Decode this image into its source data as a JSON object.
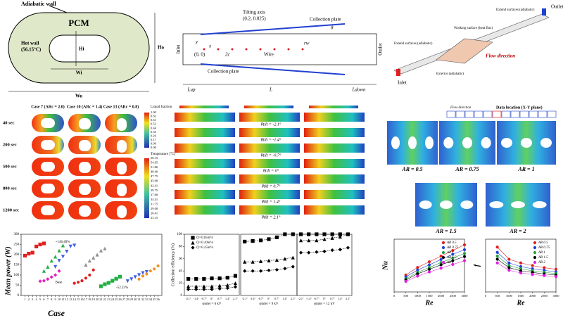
{
  "panels": {
    "stadium": {
      "wall": "Adiabatic wall",
      "pcm": "PCM",
      "hot": "Hot wall",
      "hot_temp": "(56.15°C)",
      "hi": "Hi",
      "wi": "Wi",
      "ho": "Ho",
      "wo": "Wo"
    },
    "channel": {
      "axis": "Tilting axis",
      "axis_pt": "(0.2, 0.025)",
      "plate_top": "Collection plate",
      "plate_bottom": "Collection plate",
      "inlet": "Inlet",
      "outlet": "Outlet",
      "origin": "(0, 0)",
      "gap": "2c",
      "wire": "Wire",
      "rw": "rw",
      "theta": "θ",
      "y": "y",
      "x": "x",
      "lup": "Lup",
      "l": "L",
      "ldown": "Ldown"
    },
    "duct": {
      "outlet": "Outlet",
      "inlet": "Inlet",
      "ext_left": "Extend surfaces (adiabatic)",
      "ext_right": "Extend surfaces (adiabatic)",
      "working": "Working surface (heat flux)",
      "flow": "Flow direction",
      "exterior": "Exterior (adiabatic)"
    },
    "cases": {
      "columns": [
        "Case 7 (ARc = 2.0)",
        "Case 10 (ARc = 1.4)",
        "Case 13 (ARc = 0.8)"
      ],
      "times": [
        "40 sec",
        "200 sec",
        "500 sec",
        "800 sec",
        "1200 sec"
      ],
      "liquid_title": "Liquid fraction",
      "liquid_ticks": [
        "1.00",
        "0.83",
        "0.61",
        "0.52",
        "0.44",
        "0.35",
        "0.26",
        "0.17",
        "0.09",
        "0.00"
      ],
      "temp_title": "Temperature [°C]",
      "temp_ticks": [
        "56.15",
        "54.95",
        "51.86",
        "48.40",
        "47.75",
        "45.08",
        "42.41",
        "39.75",
        "37.08",
        "34.41",
        "31.75",
        "29.08",
        "26.41",
        "23.15"
      ]
    },
    "tilt": {
      "labels": [
        "θtilt = -2.1°",
        "θtilt = -1.4°",
        "θtilt = -0.7°",
        "θtilt = 0°",
        "θtilt = 0.7°",
        "θtilt = 1.4°",
        "θtilt = 2.1°"
      ]
    },
    "ar": {
      "flow": "Flow direction",
      "data_loc": "Data location (X-Y plane)",
      "labels": [
        "AR = 0.5",
        "AR = 0.75",
        "AR = 1",
        "AR = 1.5",
        "AR = 2"
      ]
    }
  },
  "chart_data": [
    {
      "type": "scatter",
      "ylabel": "Mean power (W)",
      "xlabel": "Case",
      "annotations": [
        "+146.40%",
        "Base",
        "-52.23%"
      ],
      "xlim": [
        0,
        37
      ],
      "ylim": [
        0,
        300
      ],
      "yticks": [
        0,
        50,
        100,
        150,
        200,
        250,
        300
      ],
      "xticks": [
        1,
        2,
        3,
        4,
        5,
        6,
        7,
        8,
        9,
        10,
        11,
        12,
        13,
        14,
        15,
        16,
        17,
        18,
        19,
        20,
        21,
        22,
        23,
        24,
        25,
        26,
        27,
        28,
        29,
        30,
        31,
        32,
        33,
        34,
        35,
        36
      ],
      "series": [
        {
          "color": "#e02020",
          "marker": "square",
          "x": [
            1,
            2,
            3,
            4,
            5,
            6
          ],
          "values": [
            195,
            205,
            210,
            240,
            250,
            255
          ]
        },
        {
          "color": "#20b040",
          "marker": "triangle",
          "x": [
            6,
            7,
            8,
            9,
            10,
            11
          ],
          "values": [
            120,
            140,
            170,
            190,
            220,
            245
          ]
        },
        {
          "color": "#e020c0",
          "marker": "diamond",
          "x": [
            5,
            6,
            7,
            8,
            9,
            10
          ],
          "values": [
            70,
            72,
            80,
            90,
            100,
            120
          ]
        },
        {
          "color": "#4060e0",
          "marker": "triangle-down",
          "x": [
            9,
            10,
            11,
            12,
            13,
            14
          ],
          "values": [
            140,
            170,
            190,
            215,
            240,
            245
          ]
        },
        {
          "color": "#e02020",
          "marker": "circle",
          "x": [
            14,
            15,
            16,
            17,
            18,
            19
          ],
          "values": [
            60,
            65,
            72,
            85,
            100,
            125
          ]
        },
        {
          "color": "#909090",
          "marker": "triangle",
          "x": [
            17,
            18,
            19,
            20,
            21,
            22
          ],
          "values": [
            150,
            170,
            185,
            200,
            220,
            230
          ]
        },
        {
          "color": "#20b040",
          "marker": "square",
          "x": [
            21,
            22,
            23,
            24,
            25,
            26
          ],
          "values": [
            45,
            55,
            62,
            72,
            82,
            92
          ]
        },
        {
          "color": "#4060e0",
          "marker": "triangle-down",
          "x": [
            28,
            29,
            30,
            31,
            32,
            33
          ],
          "values": [
            70,
            80,
            90,
            100,
            110,
            115
          ]
        },
        {
          "color": "#f09020",
          "marker": "circle",
          "x": [
            31,
            32,
            33,
            34,
            35,
            36
          ],
          "values": [
            80,
            95,
            105,
            120,
            130,
            145
          ]
        }
      ]
    },
    {
      "type": "line",
      "ylabel": "Collection efficiency (%)",
      "xlabel": "φinlet = 6 kV",
      "categories": [
        "-2.1°",
        "-1.4°",
        "-0.7°",
        "0°",
        "0.7°",
        "1.4°",
        "2.1°"
      ],
      "ylim": [
        0,
        100
      ],
      "yticks": [
        0,
        20,
        40,
        60,
        80,
        100
      ],
      "series": [
        {
          "name": "Q=0.05m³/s",
          "color": "#000",
          "marker": "square",
          "values": [
            27,
            27,
            27,
            28,
            28,
            29,
            32
          ]
        },
        {
          "name": "Q=0.10m³/s",
          "color": "#000",
          "marker": "triangle",
          "values": [
            15,
            15,
            15,
            15,
            16,
            17,
            20
          ]
        },
        {
          "name": "Q=0.15m³/s",
          "color": "#000",
          "marker": "diamond",
          "values": [
            10,
            10,
            10,
            10,
            11,
            12,
            14
          ]
        }
      ]
    },
    {
      "type": "line",
      "xlabel": "φinlet = 9 kV",
      "categories": [
        "-2.1°",
        "-1.4°",
        "-0.7°",
        "0°",
        "0.7°",
        "1.4°",
        "2.1°"
      ],
      "ylim": [
        0,
        100
      ],
      "series": [
        {
          "color": "#000",
          "marker": "square",
          "values": [
            88,
            89,
            90,
            92,
            95,
            100,
            100
          ]
        },
        {
          "color": "#000",
          "marker": "triangle",
          "values": [
            55,
            55,
            56,
            57,
            58,
            60,
            62
          ]
        },
        {
          "color": "#000",
          "marker": "diamond",
          "values": [
            40,
            40,
            40,
            41,
            42,
            44,
            47
          ]
        }
      ]
    },
    {
      "type": "line",
      "xlabel": "φinlet = 12 kV",
      "categories": [
        "-2.1°",
        "-1.4°",
        "-0.7°",
        "0°",
        "0.7°",
        "1.4°",
        "2.1°"
      ],
      "ylim": [
        0,
        100
      ],
      "series": [
        {
          "color": "#000",
          "marker": "square",
          "values": [
            100,
            100,
            100,
            100,
            100,
            100,
            100
          ]
        },
        {
          "color": "#000",
          "marker": "triangle",
          "values": [
            90,
            90,
            90,
            92,
            94,
            96,
            100
          ]
        },
        {
          "color": "#000",
          "marker": "diamond",
          "values": [
            70,
            70,
            71,
            72,
            74,
            75,
            78
          ]
        }
      ]
    },
    {
      "type": "line",
      "ylabel": "Nu",
      "xlabel": "Re",
      "x": [
        500,
        1000,
        1500,
        2000,
        2500,
        3000
      ],
      "xlim": [
        0,
        3000
      ],
      "xticks": [
        0,
        500,
        1000,
        1500,
        2000,
        2500,
        3000
      ],
      "ylim": [
        0,
        140
      ],
      "series": [
        {
          "name": "AR 0.5",
          "color": "#e02020",
          "marker": "circle",
          "values": [
            45,
            65,
            80,
            95,
            110,
            125
          ]
        },
        {
          "name": "AR 0.75",
          "color": "#2040e0",
          "marker": "circle",
          "values": [
            40,
            58,
            72,
            86,
            100,
            112
          ]
        },
        {
          "name": "AR 1",
          "color": "#20a040",
          "marker": "circle",
          "values": [
            35,
            52,
            65,
            78,
            90,
            102
          ]
        },
        {
          "name": "AR 1.5",
          "color": "#000",
          "marker": "circle",
          "values": [
            32,
            48,
            60,
            72,
            83,
            94
          ]
        },
        {
          "name": "AR 2",
          "color": "#e020e0",
          "marker": "circle",
          "values": [
            28,
            42,
            53,
            63,
            73,
            83
          ]
        }
      ]
    },
    {
      "type": "line",
      "ylabel": "f",
      "xlabel": "Re",
      "x": [
        500,
        1000,
        1500,
        2000,
        2500,
        3000
      ],
      "xlim": [
        0,
        3000
      ],
      "xticks": [
        0,
        500,
        1000,
        1500,
        2000,
        2500,
        3000
      ],
      "ylim": [
        0,
        1
      ],
      "series": [
        {
          "name": "AR 0.5",
          "color": "#e02020",
          "marker": "circle",
          "values": [
            0.85,
            0.62,
            0.55,
            0.5,
            0.46,
            0.43
          ]
        },
        {
          "name": "AR 0.75",
          "color": "#2040e0",
          "marker": "circle",
          "values": [
            0.75,
            0.55,
            0.48,
            0.44,
            0.41,
            0.38
          ]
        },
        {
          "name": "AR 1",
          "color": "#20a040",
          "marker": "circle",
          "values": [
            0.68,
            0.5,
            0.44,
            0.4,
            0.37,
            0.35
          ]
        },
        {
          "name": "AR 1.5",
          "color": "#000",
          "marker": "circle",
          "values": [
            0.62,
            0.46,
            0.4,
            0.37,
            0.34,
            0.32
          ]
        },
        {
          "name": "AR 2",
          "color": "#e020e0",
          "marker": "circle",
          "values": [
            0.55,
            0.41,
            0.36,
            0.33,
            0.31,
            0.29
          ]
        }
      ]
    }
  ]
}
